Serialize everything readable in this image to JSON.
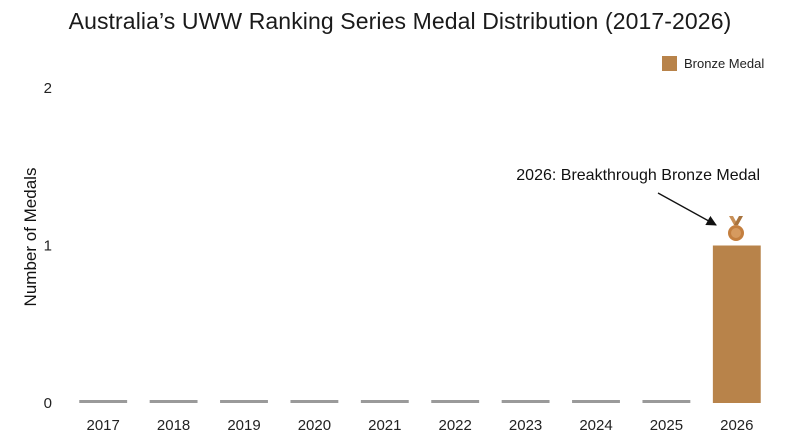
{
  "chart_data": {
    "type": "bar",
    "title": "Australia’s UWW Ranking Series Medal Distribution (2017-2026)",
    "xlabel": "",
    "ylabel": "Number of Medals",
    "categories": [
      "2017",
      "2018",
      "2019",
      "2020",
      "2021",
      "2022",
      "2023",
      "2024",
      "2025",
      "2026"
    ],
    "series": [
      {
        "name": "Bronze Medal",
        "values": [
          0,
          0,
          0,
          0,
          0,
          0,
          0,
          0,
          0,
          1
        ],
        "color": "#b8834a"
      }
    ],
    "zero_placeholder_color": "#9a9a9a",
    "ylim": [
      0,
      2
    ],
    "yticks": [
      "0",
      "1",
      "2"
    ],
    "grid": false,
    "legend": {
      "placement": "top-right",
      "entries": [
        "Bronze Medal"
      ]
    },
    "annotation": {
      "text": "2026: Breakthrough Bronze Medal",
      "target_category": "2026",
      "icon": "medal-icon"
    }
  }
}
